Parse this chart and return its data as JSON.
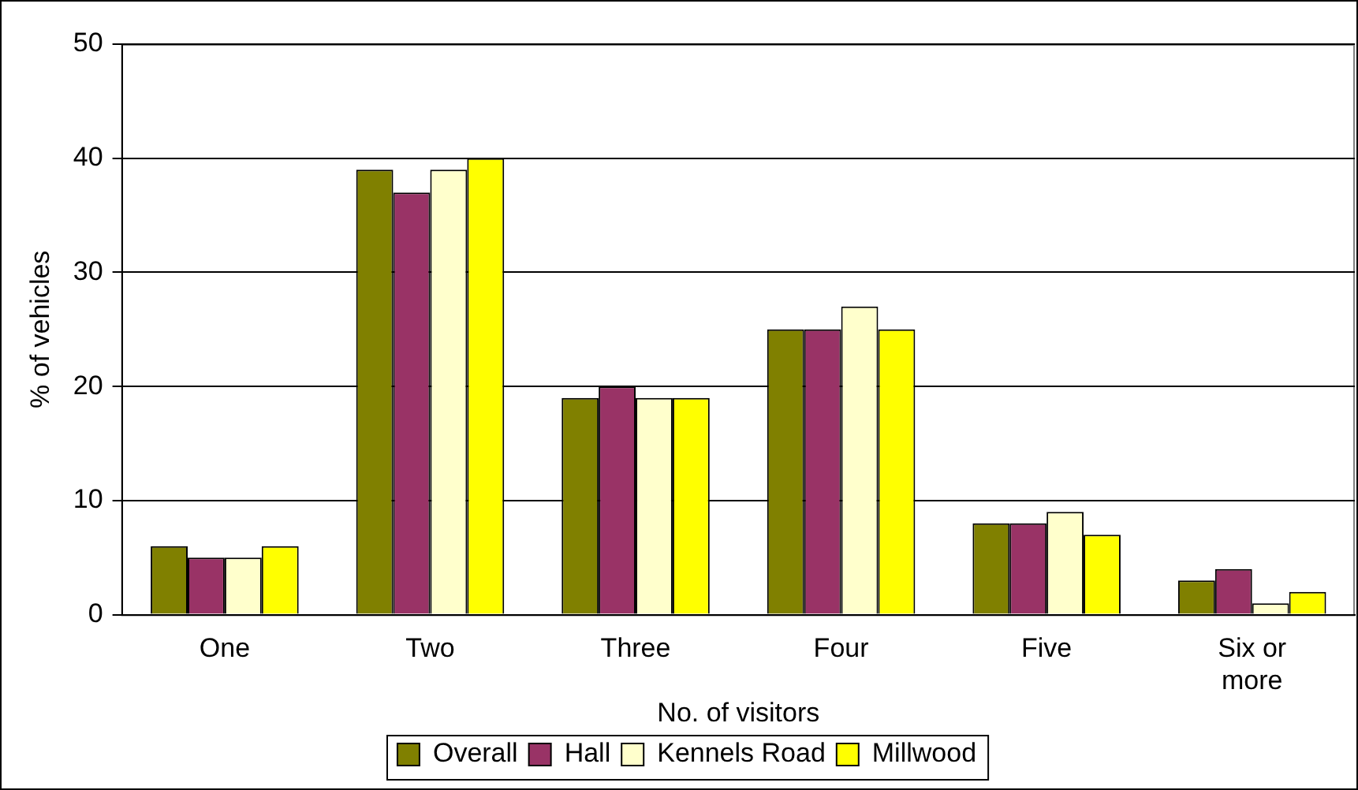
{
  "chart_data": {
    "type": "bar",
    "xlabel": "No. of visitors",
    "ylabel": "% of vehicles",
    "categories": [
      "One",
      "Two",
      "Three",
      "Four",
      "Five",
      "Six or more"
    ],
    "series": [
      {
        "name": "Overall",
        "color": "#808000",
        "values": [
          6,
          39,
          19,
          25,
          8,
          3
        ]
      },
      {
        "name": "Hall",
        "color": "#993366",
        "values": [
          5,
          37,
          20,
          25,
          8,
          4
        ]
      },
      {
        "name": "Kennels Road",
        "color": "#ffffcc",
        "values": [
          5,
          39,
          19,
          27,
          9,
          1
        ]
      },
      {
        "name": "Millwood",
        "color": "#ffff00",
        "values": [
          6,
          40,
          19,
          25,
          7,
          2
        ]
      }
    ],
    "ylim": [
      0,
      50
    ],
    "yticks": [
      0,
      10,
      20,
      30,
      40,
      50
    ],
    "grid": "y",
    "legend": "bottom"
  }
}
